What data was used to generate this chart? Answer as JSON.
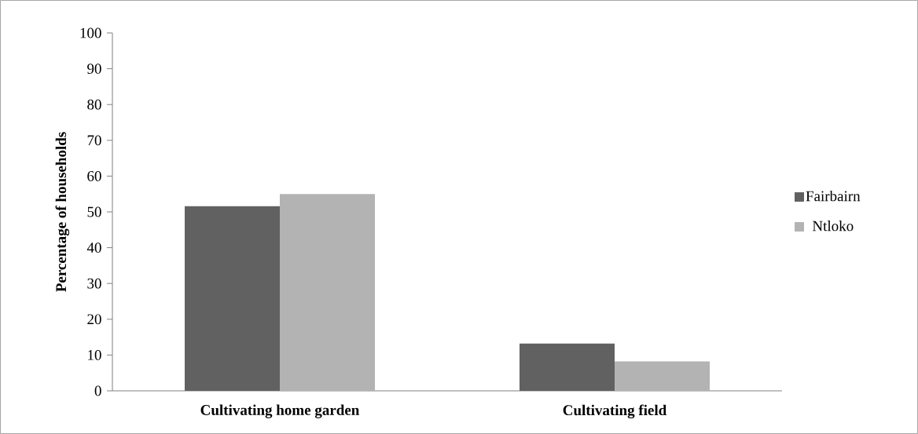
{
  "chart_data": {
    "type": "bar",
    "ylabel": "Percentage of households",
    "categories": [
      "Cultivating home garden",
      "Cultivating field"
    ],
    "series": [
      {
        "name": "Fairbairn",
        "color": "#616161",
        "values": [
          51.6,
          13.2
        ]
      },
      {
        "name": "Ntloko",
        "color": "#b3b3b3",
        "values": [
          55.0,
          8.2
        ]
      }
    ],
    "ylim": [
      0,
      100
    ],
    "yticks": [
      0,
      10,
      20,
      30,
      40,
      50,
      60,
      70,
      80,
      90,
      100
    ],
    "grid": false,
    "legend": "right"
  }
}
